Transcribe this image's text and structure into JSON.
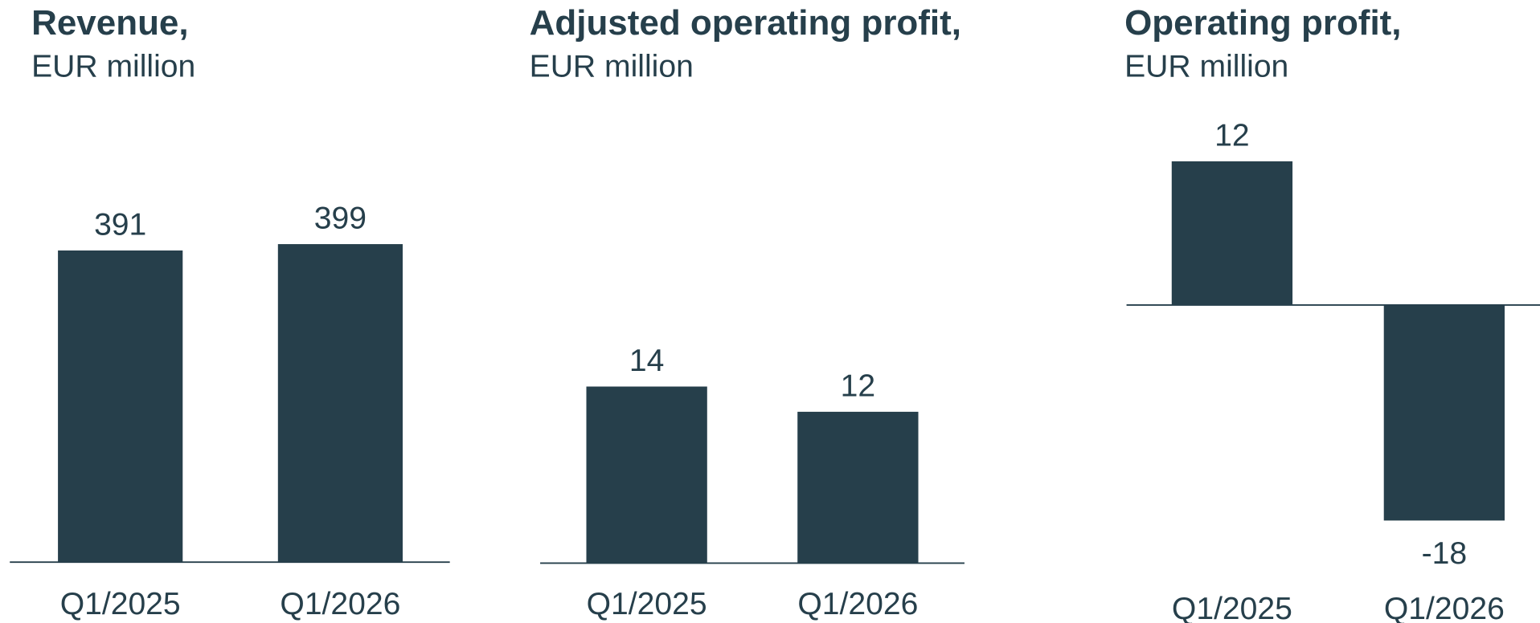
{
  "chart_data": [
    {
      "type": "bar",
      "title": "Revenue,",
      "subtitle": "EUR million",
      "categories": [
        "Q1/2025",
        "Q1/2026"
      ],
      "values": [
        391,
        399
      ],
      "color": "#263f4b",
      "ylim": [
        0,
        400
      ]
    },
    {
      "type": "bar",
      "title": "Adjusted operating profit,",
      "subtitle": "EUR million",
      "categories": [
        "Q1/2025",
        "Q1/2026"
      ],
      "values": [
        14,
        12
      ],
      "color": "#263f4b",
      "ylim": [
        0,
        35
      ]
    },
    {
      "type": "bar",
      "title": "Operating profit,",
      "subtitle": "EUR million",
      "categories": [
        "Q1/2025",
        "Q1/2026"
      ],
      "values": [
        12,
        -18
      ],
      "color": "#263f4b",
      "ylim": [
        -20,
        14
      ]
    }
  ]
}
